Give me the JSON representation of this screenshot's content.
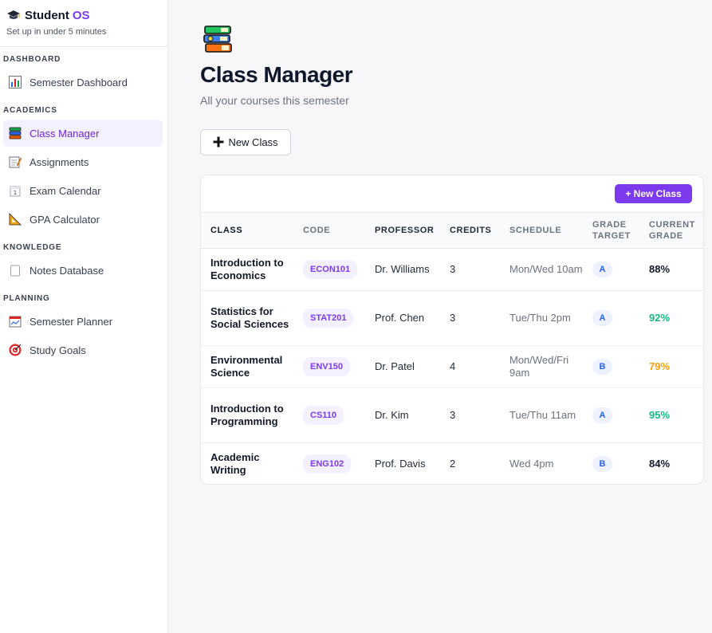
{
  "brand": {
    "name": "Student",
    "accent": "OS",
    "tagline": "Set up in under 5 minutes",
    "icon": "graduation-cap-icon"
  },
  "sidebar": {
    "sections": [
      {
        "label": "DASHBOARD",
        "items": [
          {
            "label": "Semester Dashboard",
            "icon": "bar-chart-icon"
          }
        ]
      },
      {
        "label": "ACADEMICS",
        "items": [
          {
            "label": "Class Manager",
            "icon": "books-icon",
            "active": true
          },
          {
            "label": "Assignments",
            "icon": "memo-icon"
          },
          {
            "label": "Exam Calendar",
            "icon": "calendar-icon"
          },
          {
            "label": "GPA Calculator",
            "icon": "triangle-ruler-icon"
          }
        ]
      },
      {
        "label": "KNOWLEDGE",
        "items": [
          {
            "label": "Notes Database",
            "icon": "clipboard-icon"
          }
        ]
      },
      {
        "label": "PLANNING",
        "items": [
          {
            "label": "Semester Planner",
            "icon": "planner-icon"
          },
          {
            "label": "Study Goals",
            "icon": "target-icon"
          }
        ]
      }
    ]
  },
  "main": {
    "title": "Class Manager",
    "subtitle": "All your courses this semester",
    "new_class_label": "New Class",
    "primary_button_label": "+ New Class",
    "columns": [
      "CLASS",
      "CODE",
      "PROFESSOR",
      "CREDITS",
      "SCHEDULE",
      "GRADE TARGET",
      "CURRENT GRADE"
    ],
    "rows": [
      {
        "class": "Introduction to Economics",
        "code": "ECON101",
        "professor": "Dr. Williams",
        "credits": "3",
        "schedule": "Mon/Wed 10am",
        "target": "A",
        "grade": "88%",
        "grade_color": "#111827"
      },
      {
        "class": "Statistics for Social Sciences",
        "code": "STAT201",
        "professor": "Prof. Chen",
        "credits": "3",
        "schedule": "Tue/Thu 2pm",
        "target": "A",
        "grade": "92%",
        "grade_color": "#10b981"
      },
      {
        "class": "Environmental Science",
        "code": "ENV150",
        "professor": "Dr. Patel",
        "credits": "4",
        "schedule": "Mon/Wed/Fri 9am",
        "target": "B",
        "grade": "79%",
        "grade_color": "#f59e0b"
      },
      {
        "class": "Introduction to Programming",
        "code": "CS110",
        "professor": "Dr. Kim",
        "credits": "3",
        "schedule": "Tue/Thu 11am",
        "target": "A",
        "grade": "95%",
        "grade_color": "#10b981"
      },
      {
        "class": "Academic Writing",
        "code": "ENG102",
        "professor": "Prof. Davis",
        "credits": "2",
        "schedule": "Wed 4pm",
        "target": "B",
        "grade": "84%",
        "grade_color": "#111827"
      }
    ]
  },
  "colors": {
    "accent": "#7c3aed",
    "success": "#10b981",
    "warning": "#f59e0b"
  }
}
